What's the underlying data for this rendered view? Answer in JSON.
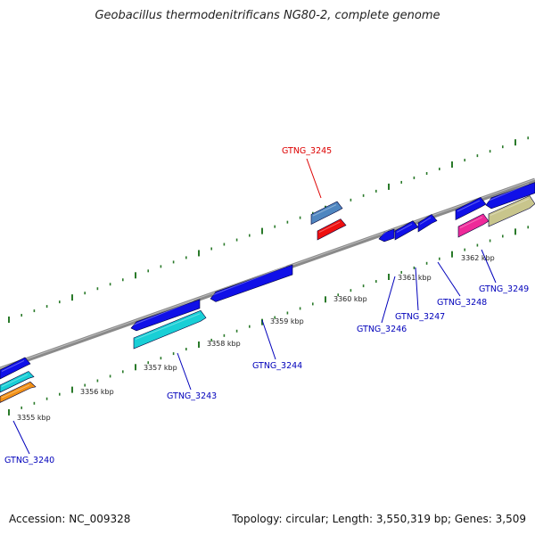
{
  "title": "Geobacillus thermodenitrificans NG80-2, complete genome",
  "footer": {
    "accession": "Accession: NC_009328",
    "summary": "Topology: circular; Length: 3,550,319 bp; Genes: 3,509"
  },
  "colors": {
    "backbone": "#8a8a8a",
    "ticks": "#2a7a2a",
    "label_default": "#0000bb",
    "label_highlight": "#dd0000"
  },
  "kbp_labels": [
    "3355 kbp",
    "3356 kbp",
    "3357 kbp",
    "3358 kbp",
    "3359 kbp",
    "3360 kbp",
    "3361 kbp",
    "3362 kbp"
  ],
  "gene_labels": [
    {
      "text": "GTNG_3245",
      "highlight": true
    },
    {
      "text": "GTNG_3240",
      "highlight": false
    },
    {
      "text": "GTNG_3243",
      "highlight": false
    },
    {
      "text": "GTNG_3244",
      "highlight": false
    },
    {
      "text": "GTNG_3246",
      "highlight": false
    },
    {
      "text": "GTNG_3247",
      "highlight": false
    },
    {
      "text": "GTNG_3248",
      "highlight": false
    },
    {
      "text": "GTNG_3249",
      "highlight": false
    }
  ]
}
